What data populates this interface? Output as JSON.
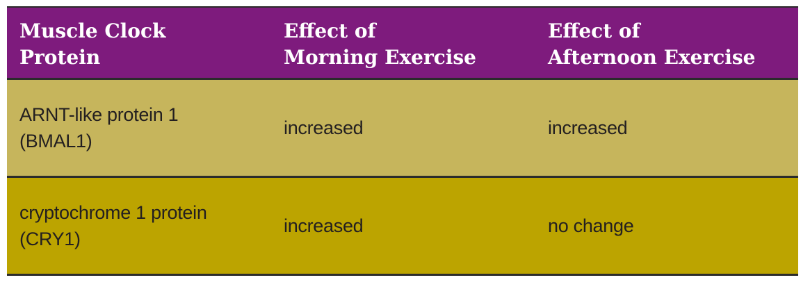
{
  "table": {
    "header": [
      [
        "Muscle Clock",
        "Protein"
      ],
      [
        "Effect of",
        "Morning Exercise"
      ],
      [
        "Effect of",
        "Afternoon Exercise"
      ]
    ],
    "rows": [
      [
        [
          "ARNT-like protein 1",
          "(BMAL1)"
        ],
        [
          "increased"
        ],
        [
          "increased"
        ]
      ],
      [
        [
          "cryptochrome 1 protein",
          "(CRY1)"
        ],
        [
          "increased"
        ],
        [
          "no change"
        ]
      ]
    ]
  }
}
